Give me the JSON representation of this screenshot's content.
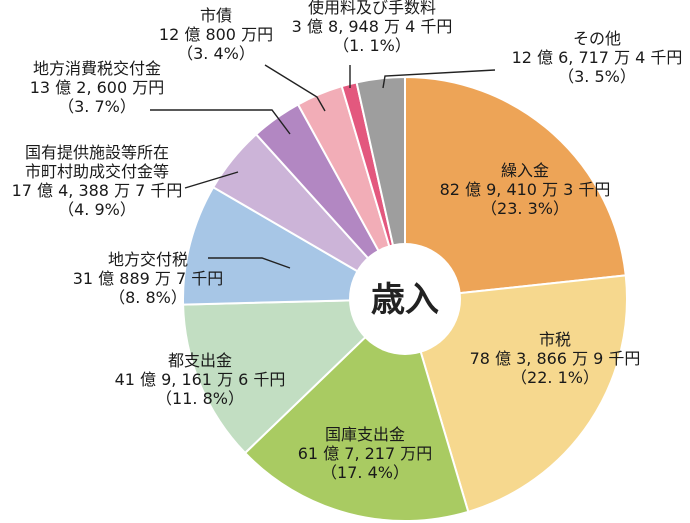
{
  "chart_data": {
    "type": "pie",
    "title": "",
    "center_label": "歳入",
    "slices": [
      {
        "id": "kurikomikin",
        "name": "繰入金",
        "amount": "82 億 9, 410 万 3 千円",
        "percent_label": "（23. 3%）",
        "value": 23.3,
        "color": "#eda457"
      },
      {
        "id": "shizei",
        "name": "市税",
        "amount": "78 億 3, 866 万 9 千円",
        "percent_label": "（22. 1%）",
        "value": 22.1,
        "color": "#f6d88e"
      },
      {
        "id": "kokko",
        "name": "国庫支出金",
        "amount": "61 億 7, 217 万円",
        "percent_label": "（17. 4%）",
        "value": 17.4,
        "color": "#a9cb62"
      },
      {
        "id": "toshishutsu",
        "name": "都支出金",
        "amount": "41 億 9, 161 万 6 千円",
        "percent_label": "（11. 8%）",
        "value": 11.8,
        "color": "#c2dec2"
      },
      {
        "id": "chihokofuzei",
        "name": "地方交付税",
        "amount": "31 億 889 万 7 千円",
        "percent_label": "（8. 8%）",
        "value": 8.8,
        "color": "#a7c6e6"
      },
      {
        "id": "kokuyu",
        "name": "国有提供施設等所在\n市町村助成交付金等",
        "amount": "17 億 4, 388 万 7 千円",
        "percent_label": "（4. 9%）",
        "value": 4.9,
        "color": "#ccb4d8"
      },
      {
        "id": "shohizei",
        "name": "地方消費税交付金",
        "amount": "13 億 2, 600 万円",
        "percent_label": "（3. 7%）",
        "value": 3.7,
        "color": "#b287c2"
      },
      {
        "id": "shisai",
        "name": "市債",
        "amount": "12 億 800 万円",
        "percent_label": "（3. 4%）",
        "value": 3.4,
        "color": "#f2adb7"
      },
      {
        "id": "shiyoryo",
        "name": "使用料及び手数料",
        "amount": "3 億 8, 948 万 4 千円",
        "percent_label": "（1. 1%）",
        "value": 1.1,
        "color": "#e3587e"
      },
      {
        "id": "sonota",
        "name": "その他",
        "amount": "12 億 6, 717 万 4 千円",
        "percent_label": "（3. 5%）",
        "value": 3.5,
        "color": "#9e9e9e"
      }
    ]
  }
}
